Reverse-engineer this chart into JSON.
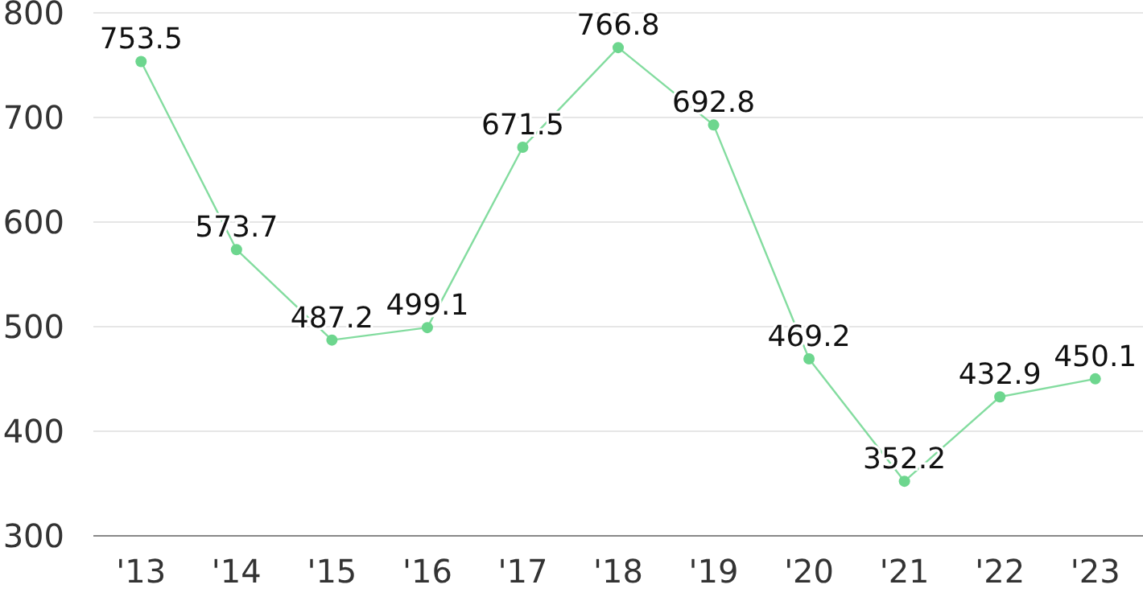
{
  "chart_data": {
    "type": "line",
    "categories": [
      "'13",
      "'14",
      "'15",
      "'16",
      "'17",
      "'18",
      "'19",
      "'20",
      "'21",
      "'22",
      "'23"
    ],
    "series": [
      {
        "color": "#6dd68e",
        "values": [
          753.5,
          573.7,
          487.2,
          499.1,
          671.5,
          766.8,
          692.8,
          469.2,
          352.2,
          432.9,
          450.1
        ]
      }
    ],
    "ylim": [
      300,
      800
    ],
    "yticks": [
      300,
      400,
      500,
      600,
      700,
      800
    ],
    "grid": "y",
    "marker": "circle",
    "data_labels": true
  }
}
